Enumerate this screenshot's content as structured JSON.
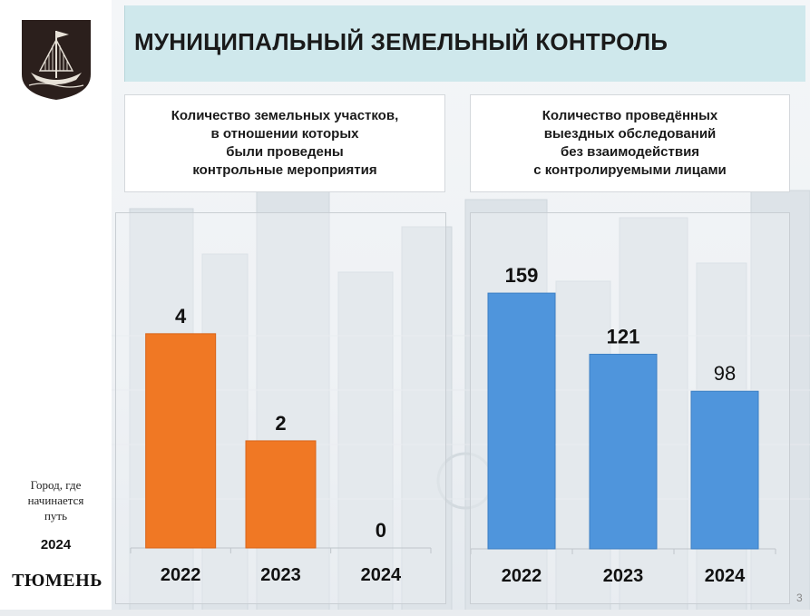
{
  "title": "МУНИЦИПАЛЬНЫЙ ЗЕМЕЛЬНЫЙ КОНТРОЛЬ",
  "sidebar": {
    "slogan_lines": [
      "Город, где",
      "начинается",
      "путь"
    ],
    "year": "2024",
    "city_name": "ТЮМЕНЬ"
  },
  "page_number": "3",
  "colors": {
    "orange": "#f07824",
    "blue": "#4f95dc",
    "title_bar": "#cfe8ec"
  },
  "chart_data": [
    {
      "type": "bar",
      "title": "Количество земельных участков,\nв отношении которых\nбыли проведены\nконтрольные мероприятия",
      "categories": [
        "2022",
        "2023",
        "2024"
      ],
      "values": [
        4,
        2,
        0
      ],
      "data_labels": [
        "4",
        "2",
        "0"
      ],
      "ylim": [
        0,
        5.2
      ],
      "color": "#f07824",
      "xlabel": "",
      "ylabel": "",
      "grid": false,
      "legend": "none"
    },
    {
      "type": "bar",
      "title": "Количество проведённых\nвыездных обследований\nбез взаимодействия\nс контролируемыми лицами",
      "categories": [
        "2022",
        "2023",
        "2024"
      ],
      "values": [
        159,
        121,
        98
      ],
      "data_labels": [
        "159",
        "121",
        "98"
      ],
      "ylim": [
        0,
        185
      ],
      "color": "#4f95dc",
      "xlabel": "",
      "ylabel": "",
      "grid": false,
      "legend": "none"
    }
  ]
}
